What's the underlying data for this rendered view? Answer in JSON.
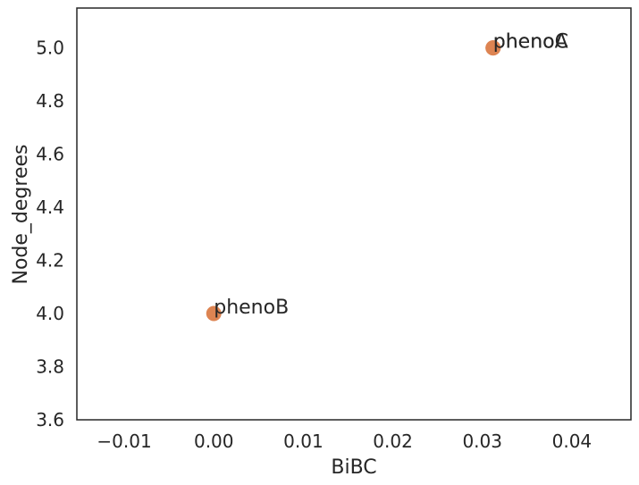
{
  "chart_data": {
    "type": "scatter",
    "title": "",
    "xlabel": "BiBC",
    "ylabel": "Node_degrees",
    "xlim": [
      -0.0153,
      0.0466
    ],
    "ylim": [
      3.6,
      5.15
    ],
    "xticks": [
      -0.01,
      0.0,
      0.01,
      0.02,
      0.03,
      0.04
    ],
    "xtick_labels": [
      "−0.01",
      "0.00",
      "0.01",
      "0.02",
      "0.03",
      "0.04"
    ],
    "yticks": [
      3.6,
      3.8,
      4.0,
      4.2,
      4.4,
      4.6,
      4.8,
      5.0
    ],
    "ytick_labels": [
      "3.6",
      "3.8",
      "4.0",
      "4.2",
      "4.4",
      "4.6",
      "4.8",
      "5.0"
    ],
    "grid": false,
    "points": [
      {
        "x": 0.0312,
        "y": 5.0,
        "label": "phenoA"
      },
      {
        "x": 0.0312,
        "y": 5.0,
        "label": "phenoC"
      },
      {
        "x": 0.0,
        "y": 4.0,
        "label": "phenoB"
      }
    ],
    "colors": {
      "marker": "#dd8452",
      "axes": "#262626",
      "background": "#ffffff"
    }
  }
}
